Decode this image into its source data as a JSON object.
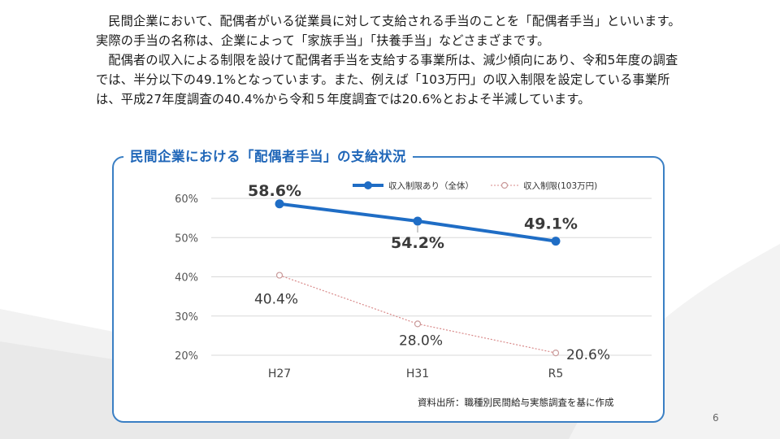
{
  "paragraphs": [
    "民間企業において、配偶者がいる従業員に対して支給される手当のことを「配偶者手当」といいます。実際の手当の名称は、企業によって「家族手当」「扶養手当」などさまざまです。",
    "配偶者の収入による制限を設けて配偶者手当を支給する事業所は、減少傾向にあり、令和5年度の調査では、半分以下の49.1%となっています。また、例えば「103万円」の収入制限を設定している事業所は、平成27年度調査の40.4%から令和５年度調査では20.6%とおよそ半減しています。"
  ],
  "chart_title": "民間企業における「配偶者手当」の支給状況",
  "source_note": "資料出所：職種別民間給与実態調査を基に作成",
  "page_number": "6",
  "colors": {
    "primary": "#1f6dc5",
    "secondary": "#d98a8a",
    "frame": "#3a7fc4",
    "title": "#1f66b8"
  },
  "chart_data": {
    "type": "line",
    "categories": [
      "H27",
      "H31",
      "R5"
    ],
    "series": [
      {
        "name": "収入制限あり（全体）",
        "values": [
          58.6,
          54.2,
          49.1
        ],
        "labels": [
          "58.6%",
          "54.2%",
          "49.1%"
        ]
      },
      {
        "name": "収入制限(103万円)",
        "values": [
          40.4,
          28.0,
          20.6
        ],
        "labels": [
          "40.4%",
          "28.0%",
          "20.6%"
        ]
      }
    ],
    "yticks": [
      "20%",
      "30%",
      "40%",
      "50%",
      "60%"
    ],
    "ylim": [
      20,
      60
    ],
    "grid": true,
    "legend": "top"
  }
}
